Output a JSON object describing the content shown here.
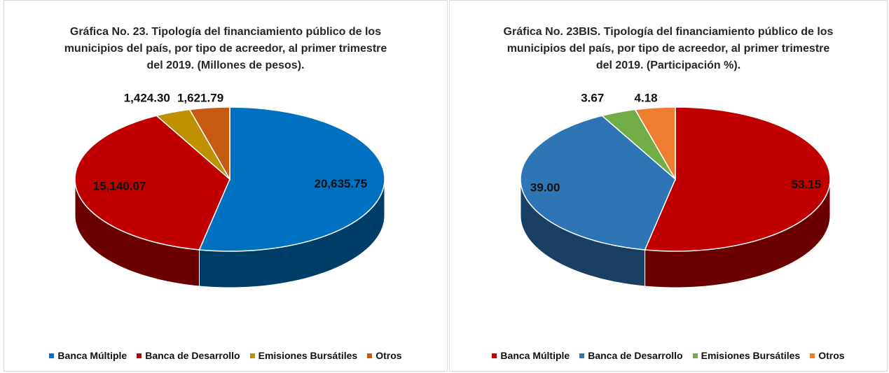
{
  "chart_data": [
    {
      "type": "pie",
      "title": "Gráfica No. 23. Tipología del financiamiento público de los municipios del país, por tipo de acreedor, al primer trimestre del 2019. (Millones de pesos).",
      "categories": [
        "Banca Múltiple",
        "Banca de Desarrollo",
        "Emisiones Bursátiles",
        "Otros"
      ],
      "values": [
        20635.75,
        15140.07,
        1424.3,
        1621.79
      ],
      "value_labels": [
        "20,635.75",
        "15,140.07",
        "1,424.30",
        "1,621.79"
      ],
      "colors": [
        "#0070c0",
        "#c00000",
        "#bf9000",
        "#c55a11"
      ],
      "legend": "bottom"
    },
    {
      "type": "pie",
      "title": "Gráfica No. 23BIS. Tipología del financiamiento público de los municipios del país, por tipo de acreedor, al primer trimestre del 2019. (Participación %).",
      "categories": [
        "Banca Múltiple",
        "Banca de Desarrollo",
        "Emisiones Bursátiles",
        "Otros"
      ],
      "values": [
        53.15,
        39.0,
        3.67,
        4.18
      ],
      "value_labels": [
        "53.15",
        "39.00",
        "3.67",
        "4.18"
      ],
      "colors": [
        "#c00000",
        "#2e75b6",
        "#70ad47",
        "#ed7d31"
      ],
      "legend": "bottom"
    }
  ]
}
